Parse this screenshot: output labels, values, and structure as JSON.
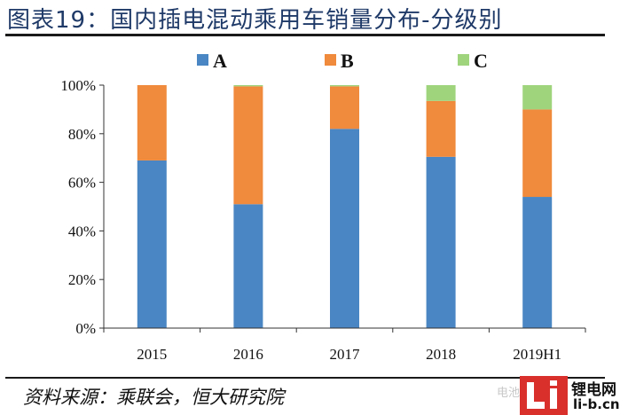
{
  "title": "图表19：国内插电混动乘用车销量分布-分级别",
  "source": "资料来源：乘联会，恒大研究院",
  "watermark": "电池网",
  "logo": {
    "cn": "锂电网",
    "url": "li-b.cn"
  },
  "chart_data": {
    "type": "bar",
    "stacked": true,
    "categories": [
      "2015",
      "2016",
      "2017",
      "2018",
      "2019H1"
    ],
    "series": [
      {
        "name": "A",
        "color": "#4a86c3",
        "values": [
          0.69,
          0.51,
          0.82,
          0.705,
          0.54
        ]
      },
      {
        "name": "B",
        "color": "#f08a3c",
        "values": [
          0.31,
          0.485,
          0.175,
          0.23,
          0.36
        ]
      },
      {
        "name": "C",
        "color": "#9fd47d",
        "values": [
          0.0,
          0.005,
          0.005,
          0.065,
          0.1
        ]
      }
    ],
    "yticks": [
      "0%",
      "20%",
      "40%",
      "60%",
      "80%",
      "100%"
    ],
    "ylim": [
      0,
      1
    ],
    "legend_position": "top",
    "grid": false
  }
}
